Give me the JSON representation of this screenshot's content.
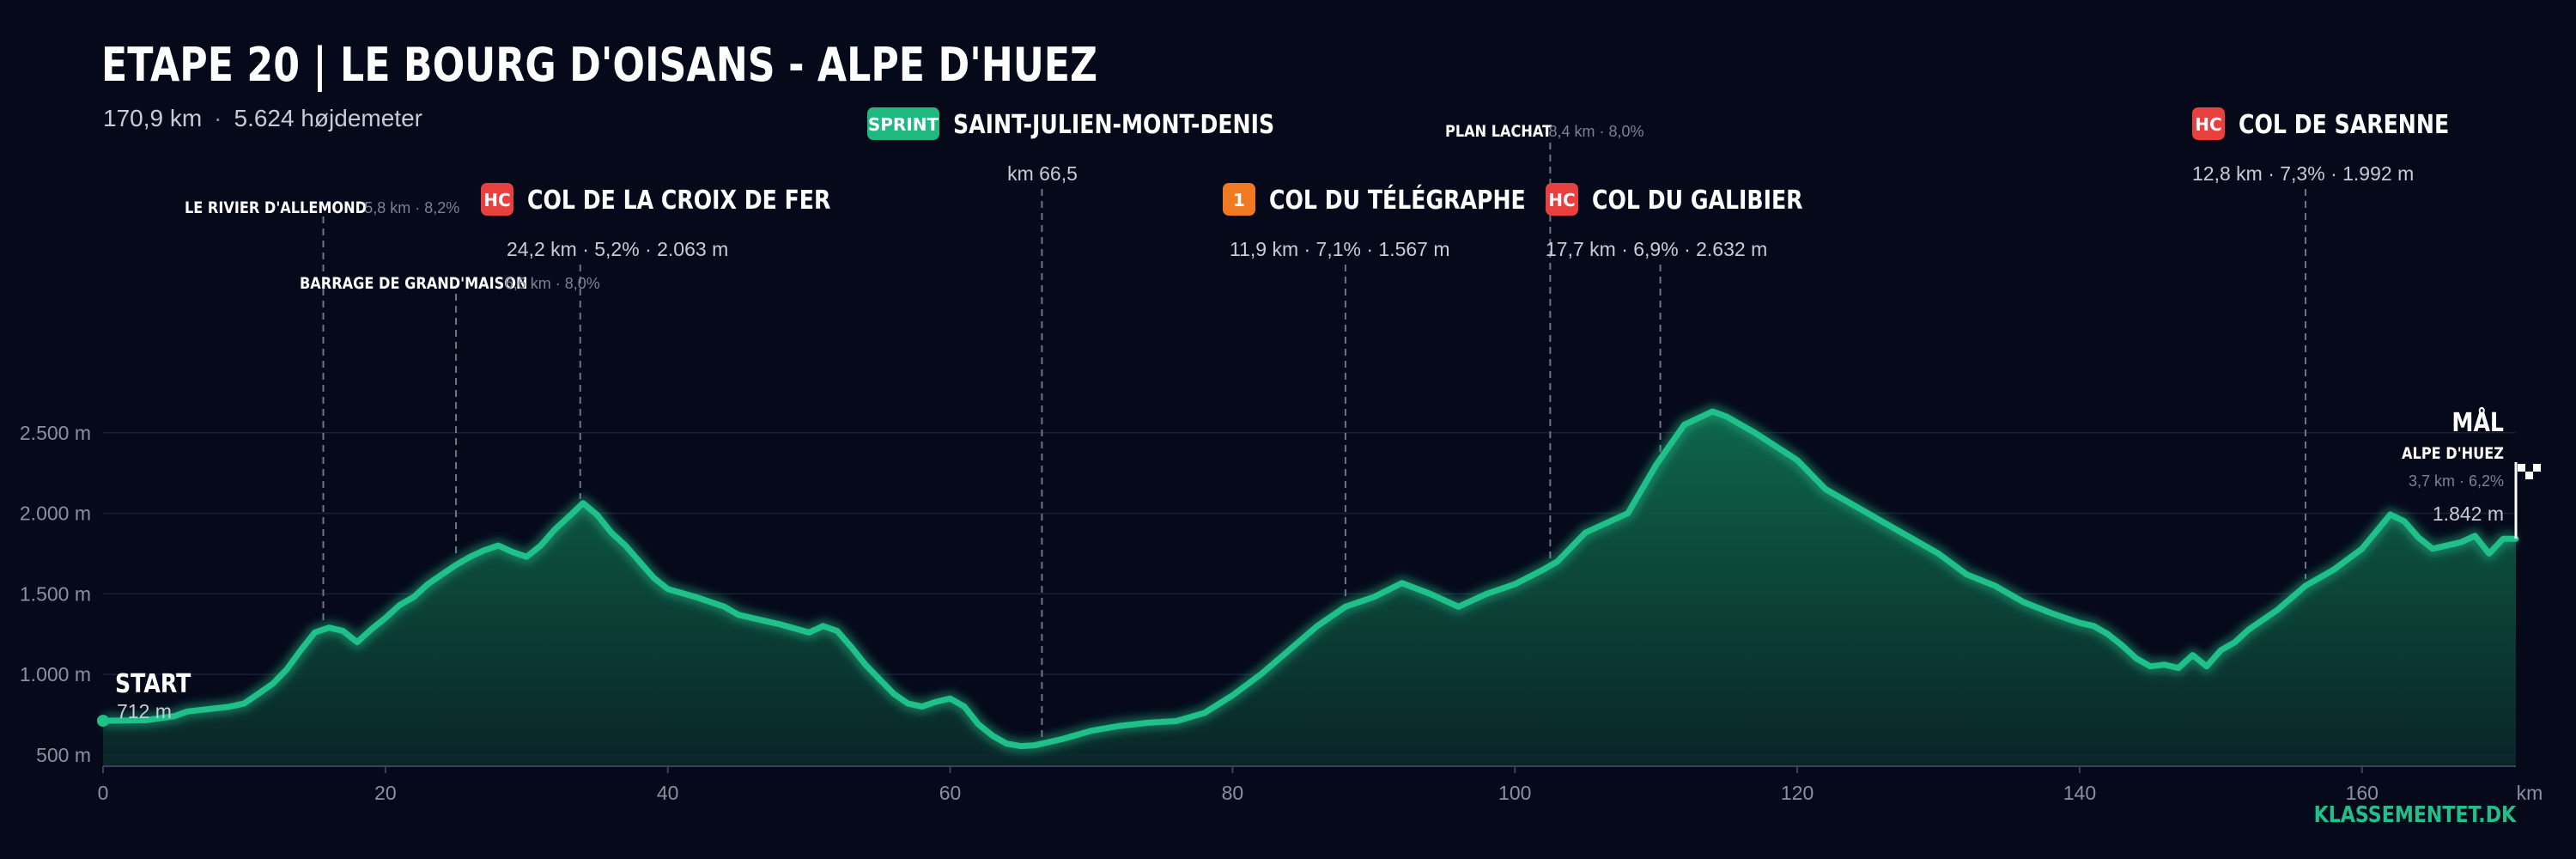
{
  "header": {
    "title": "ETAPE 20  |  LE BOURG D'OISANS - ALPE D'HUEZ",
    "distance": "170,9 km",
    "separator": "·",
    "elevation_gain": "5.624 højdemeter"
  },
  "brand": "KLASSEMENTET.DK",
  "colors": {
    "background": "#05091a",
    "line": "#1fc08a",
    "fill_top": "#0f6b4d",
    "hc_badge": "#e8403f",
    "cat1_badge": "#f07a22",
    "sprint_badge": "#1fb87f",
    "grid": "#1a2036"
  },
  "chart_data": {
    "type": "area",
    "xlabel": "km",
    "ylabel": "",
    "xlim": [
      0,
      170.9
    ],
    "ylim": [
      430,
      2840
    ],
    "x_ticks": [
      0,
      20,
      40,
      60,
      80,
      100,
      120,
      140,
      160
    ],
    "y_ticks": [
      {
        "value": 500,
        "label": "500 m"
      },
      {
        "value": 1000,
        "label": "1.000 m"
      },
      {
        "value": 1500,
        "label": "1.500 m"
      },
      {
        "value": 2000,
        "label": "2.000 m"
      },
      {
        "value": 2500,
        "label": "2.500 m"
      }
    ],
    "grid": "horizontal",
    "profile": [
      [
        0,
        712
      ],
      [
        3,
        715
      ],
      [
        5,
        740
      ],
      [
        6,
        770
      ],
      [
        8,
        790
      ],
      [
        9,
        800
      ],
      [
        10,
        820
      ],
      [
        11,
        880
      ],
      [
        12,
        940
      ],
      [
        13,
        1030
      ],
      [
        14,
        1150
      ],
      [
        15,
        1260
      ],
      [
        16,
        1290
      ],
      [
        17,
        1270
      ],
      [
        18,
        1200
      ],
      [
        19,
        1280
      ],
      [
        20,
        1350
      ],
      [
        21,
        1430
      ],
      [
        22,
        1480
      ],
      [
        23,
        1560
      ],
      [
        24,
        1620
      ],
      [
        25,
        1680
      ],
      [
        26,
        1730
      ],
      [
        27,
        1770
      ],
      [
        28,
        1800
      ],
      [
        29,
        1760
      ],
      [
        30,
        1730
      ],
      [
        31,
        1800
      ],
      [
        32,
        1900
      ],
      [
        33,
        1980
      ],
      [
        34,
        2063
      ],
      [
        35,
        1990
      ],
      [
        36,
        1880
      ],
      [
        37,
        1800
      ],
      [
        38,
        1700
      ],
      [
        39,
        1600
      ],
      [
        40,
        1530
      ],
      [
        42,
        1480
      ],
      [
        44,
        1420
      ],
      [
        45,
        1370
      ],
      [
        46,
        1350
      ],
      [
        48,
        1310
      ],
      [
        50,
        1260
      ],
      [
        51,
        1300
      ],
      [
        52,
        1270
      ],
      [
        53,
        1170
      ],
      [
        54,
        1060
      ],
      [
        55,
        970
      ],
      [
        56,
        880
      ],
      [
        57,
        820
      ],
      [
        58,
        800
      ],
      [
        59,
        830
      ],
      [
        60,
        850
      ],
      [
        61,
        800
      ],
      [
        62,
        690
      ],
      [
        63,
        620
      ],
      [
        64,
        570
      ],
      [
        65,
        555
      ],
      [
        66,
        560
      ],
      [
        67,
        580
      ],
      [
        68,
        600
      ],
      [
        70,
        650
      ],
      [
        72,
        680
      ],
      [
        74,
        700
      ],
      [
        76,
        710
      ],
      [
        78,
        760
      ],
      [
        80,
        870
      ],
      [
        82,
        1000
      ],
      [
        84,
        1150
      ],
      [
        86,
        1300
      ],
      [
        88,
        1420
      ],
      [
        90,
        1480
      ],
      [
        92,
        1567
      ],
      [
        94,
        1500
      ],
      [
        96,
        1420
      ],
      [
        98,
        1500
      ],
      [
        100,
        1560
      ],
      [
        102,
        1650
      ],
      [
        103,
        1700
      ],
      [
        105,
        1880
      ],
      [
        106,
        1920
      ],
      [
        108,
        2000
      ],
      [
        110,
        2300
      ],
      [
        112,
        2550
      ],
      [
        114,
        2632
      ],
      [
        115,
        2600
      ],
      [
        117,
        2500
      ],
      [
        120,
        2330
      ],
      [
        122,
        2150
      ],
      [
        124,
        2050
      ],
      [
        126,
        1950
      ],
      [
        128,
        1850
      ],
      [
        130,
        1750
      ],
      [
        132,
        1620
      ],
      [
        134,
        1550
      ],
      [
        136,
        1450
      ],
      [
        138,
        1380
      ],
      [
        140,
        1320
      ],
      [
        141,
        1300
      ],
      [
        142,
        1250
      ],
      [
        143,
        1180
      ],
      [
        144,
        1100
      ],
      [
        145,
        1050
      ],
      [
        146,
        1060
      ],
      [
        147,
        1040
      ],
      [
        148,
        1120
      ],
      [
        149,
        1050
      ],
      [
        150,
        1150
      ],
      [
        151,
        1200
      ],
      [
        152,
        1280
      ],
      [
        154,
        1400
      ],
      [
        156,
        1550
      ],
      [
        158,
        1650
      ],
      [
        160,
        1780
      ],
      [
        162,
        1992
      ],
      [
        163,
        1950
      ],
      [
        164,
        1850
      ],
      [
        165,
        1780
      ],
      [
        166,
        1800
      ],
      [
        167,
        1820
      ],
      [
        168,
        1860
      ],
      [
        169,
        1750
      ],
      [
        170,
        1842
      ],
      [
        170.9,
        1842
      ]
    ],
    "annotations": [
      {
        "km": 15.6,
        "label": "LE RIVIER D'ALLEMOND",
        "detail": "5,8 km · 8,2%",
        "style": "small"
      },
      {
        "km": 25.0,
        "label": "BARRAGE DE GRAND'MAISON",
        "detail": "6,6 km · 8,0%",
        "style": "small"
      },
      {
        "km": 33.8,
        "label": "COL DE LA CROIX DE FER",
        "badge": "HC",
        "detail": "24,2 km · 5,2% · 2.063 m",
        "style": "main"
      },
      {
        "km": 66.5,
        "label": "SAINT-JULIEN-MONT-DENIS",
        "badge": "SPRINT",
        "detail": "km 66,5",
        "style": "main"
      },
      {
        "km": 88.0,
        "label": "COL DU TÉLÉGRAPHE",
        "badge": "1",
        "detail": "11,9 km · 7,1% · 1.567 m",
        "style": "main"
      },
      {
        "km": 102.5,
        "label": "PLAN LACHAT",
        "detail": "8,4 km · 8,0%",
        "style": "small"
      },
      {
        "km": 110.3,
        "label": "COL DU GALIBIER",
        "badge": "HC",
        "detail": "17,7 km · 6,9% · 2.632 m",
        "style": "main"
      },
      {
        "km": 156.0,
        "label": "COL DE SARENNE",
        "badge": "HC",
        "detail": "12,8 km · 7,3% · 1.992 m",
        "style": "main"
      }
    ],
    "start": {
      "label": "START",
      "elevation": "712 m"
    },
    "finish": {
      "label": "MÅL",
      "name": "ALPE D'HUEZ",
      "detail": "3,7 km · 6,2%",
      "elevation": "1.842 m"
    }
  }
}
